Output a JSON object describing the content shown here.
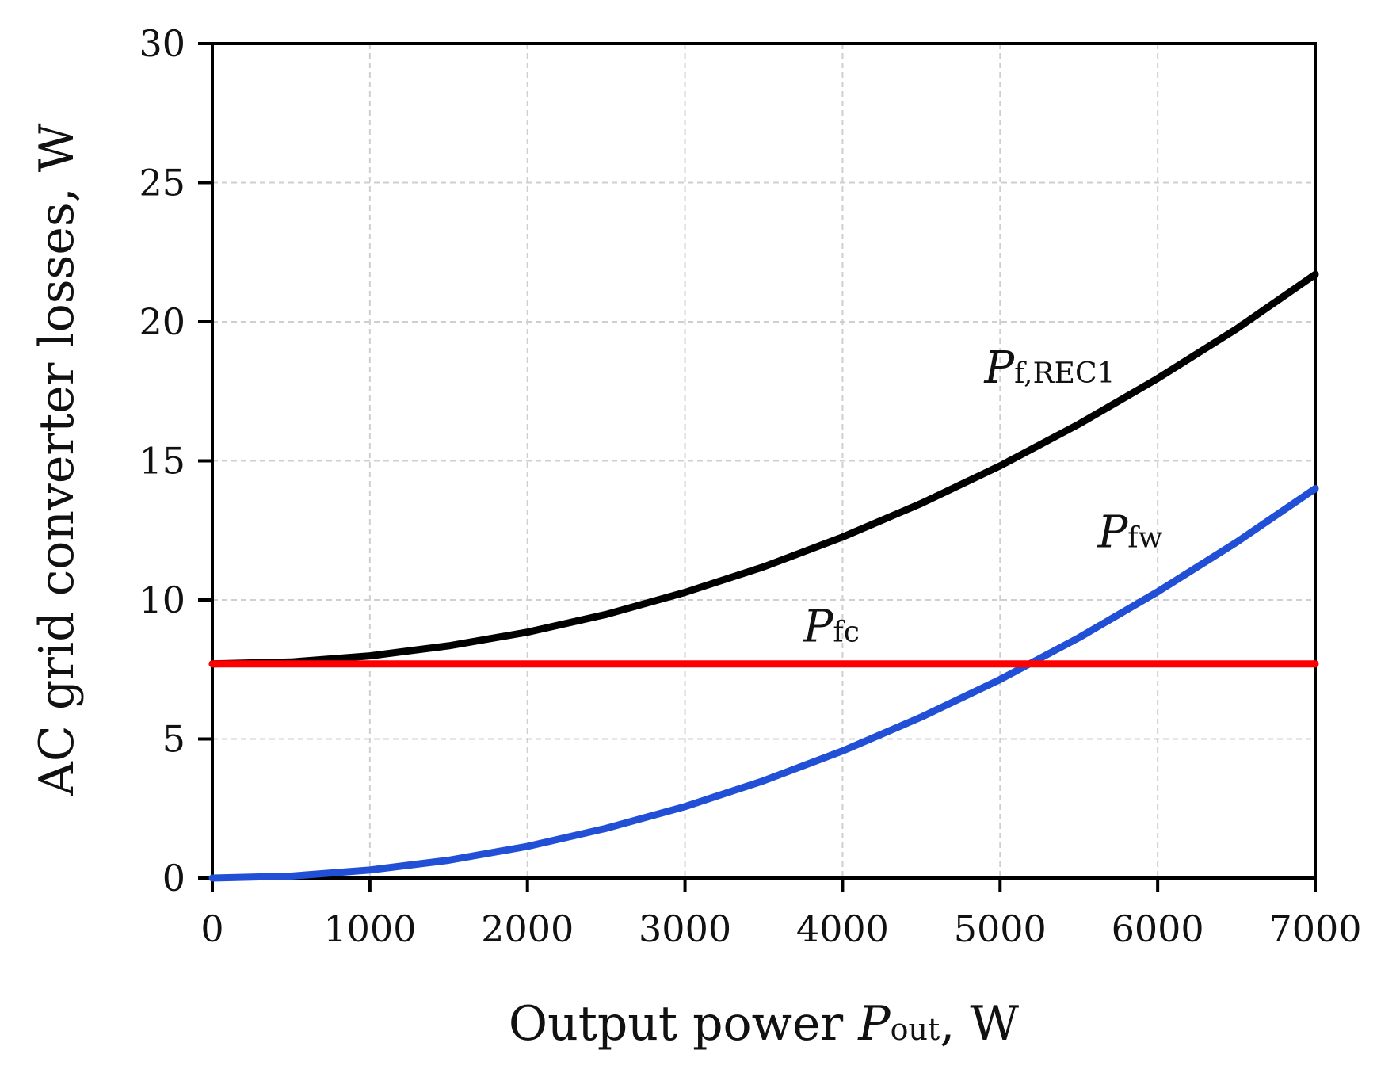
{
  "chart_data": {
    "type": "line",
    "xlabel_prefix": "Output power ",
    "xlabel_symbol": "P",
    "xlabel_subscript": "out",
    "xlabel_suffix": ", W",
    "ylabel": "AC grid converter losses, W",
    "xlim": [
      0,
      7000
    ],
    "ylim": [
      0,
      30
    ],
    "xticks": [
      0,
      1000,
      2000,
      3000,
      4000,
      5000,
      6000,
      7000
    ],
    "yticks": [
      0,
      5,
      10,
      15,
      20,
      25,
      30
    ],
    "xtick_labels": [
      "0",
      "1000",
      "2000",
      "3000",
      "4000",
      "5000",
      "6000",
      "7000"
    ],
    "ytick_labels": [
      "0",
      "5",
      "10",
      "15",
      "20",
      "25",
      "30"
    ],
    "grid": true,
    "x": [
      0,
      500,
      1000,
      1500,
      2000,
      2500,
      3000,
      3500,
      4000,
      4500,
      5000,
      5500,
      6000,
      6500,
      7000
    ],
    "series": [
      {
        "name": "P_f,REC1",
        "label_symbol": "P",
        "label_subscript": "f,REC1",
        "color": "#000000",
        "label_at": [
          4900,
          17.8
        ],
        "values": [
          7.7,
          7.77,
          7.99,
          8.35,
          8.84,
          9.48,
          10.27,
          11.19,
          12.26,
          13.47,
          14.82,
          16.32,
          17.96,
          19.74,
          21.7
        ]
      },
      {
        "name": "P_fw",
        "label_symbol": "P",
        "label_subscript": "fw",
        "color": "#2150d6",
        "label_at": [
          5620,
          11.9
        ],
        "values": [
          0,
          0.07,
          0.29,
          0.64,
          1.14,
          1.79,
          2.57,
          3.5,
          4.57,
          5.79,
          7.14,
          8.64,
          10.29,
          12.07,
          14.0
        ]
      },
      {
        "name": "P_fc",
        "label_symbol": "P",
        "label_subscript": "fc",
        "color": "#ff0000",
        "label_at": [
          3750,
          8.5
        ],
        "values": [
          7.7,
          7.7,
          7.7,
          7.7,
          7.7,
          7.7,
          7.7,
          7.7,
          7.7,
          7.7,
          7.7,
          7.7,
          7.7,
          7.7,
          7.7
        ]
      }
    ]
  }
}
